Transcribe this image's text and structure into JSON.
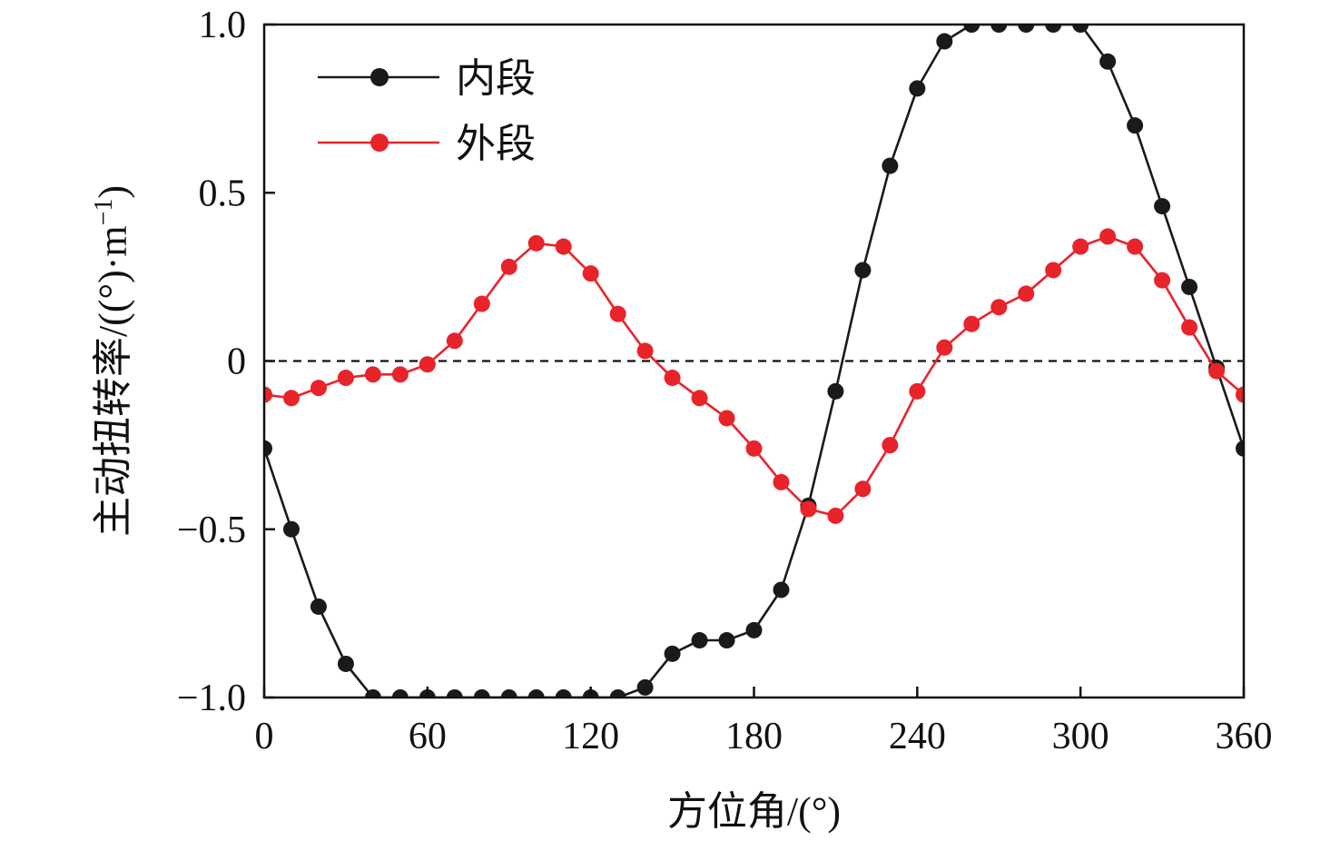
{
  "chart_data": {
    "type": "line",
    "xlabel": "方位角/(°)",
    "ylabel": "主动扭转率/((°)·m",
    "ylabel_superscript": "−1",
    "ylabel_close": ")",
    "xlim": [
      0,
      360
    ],
    "ylim": [
      -1.0,
      1.0
    ],
    "x_ticks": [
      0,
      60,
      120,
      180,
      240,
      300,
      360
    ],
    "x_tick_labels": [
      "0",
      "60",
      "120",
      "180",
      "240",
      "300",
      "360"
    ],
    "y_ticks": [
      -1.0,
      -0.5,
      0,
      0.5,
      1.0
    ],
    "y_tick_labels": [
      "−1.0",
      "−0.5",
      "0",
      "0.5",
      "1.0"
    ],
    "reference_line": {
      "y": 0,
      "style": "dashed"
    },
    "grid": false,
    "legend_position": "top-left",
    "x": [
      0,
      10,
      20,
      30,
      40,
      50,
      60,
      70,
      80,
      90,
      100,
      110,
      120,
      130,
      140,
      150,
      160,
      170,
      180,
      190,
      200,
      210,
      220,
      230,
      240,
      250,
      260,
      270,
      280,
      290,
      300,
      310,
      320,
      330,
      340,
      350,
      360
    ],
    "series": [
      {
        "name": "内段",
        "color": "#1a1a1a",
        "values": [
          -0.26,
          -0.5,
          -0.73,
          -0.9,
          -1.0,
          -1.0,
          -1.0,
          -1.0,
          -1.0,
          -1.0,
          -1.0,
          -1.0,
          -1.0,
          -1.0,
          -0.97,
          -0.87,
          -0.83,
          -0.83,
          -0.8,
          -0.68,
          -0.43,
          -0.09,
          0.27,
          0.58,
          0.81,
          0.95,
          1.0,
          1.0,
          1.0,
          1.0,
          1.0,
          0.89,
          0.7,
          0.46,
          0.22,
          -0.02,
          -0.26
        ]
      },
      {
        "name": "外段",
        "color": "#e8232a",
        "values": [
          -0.1,
          -0.11,
          -0.08,
          -0.05,
          -0.04,
          -0.04,
          -0.01,
          0.06,
          0.17,
          0.28,
          0.35,
          0.34,
          0.26,
          0.14,
          0.03,
          -0.05,
          -0.11,
          -0.17,
          -0.26,
          -0.36,
          -0.44,
          -0.46,
          -0.38,
          -0.25,
          -0.09,
          0.04,
          0.11,
          0.16,
          0.2,
          0.27,
          0.34,
          0.37,
          0.34,
          0.24,
          0.1,
          -0.03,
          -0.1
        ]
      }
    ]
  }
}
